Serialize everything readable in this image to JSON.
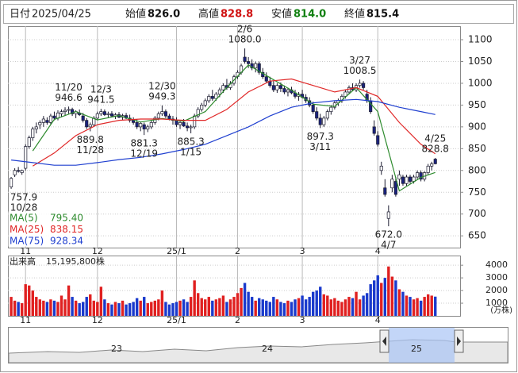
{
  "header": [
    {
      "label": "日付",
      "value": "2025/04/25",
      "color": "#222222"
    },
    {
      "label": "始値",
      "value": "826.0",
      "color": "#111111"
    },
    {
      "label": "高値",
      "value": "828.8",
      "color": "#d01010"
    },
    {
      "label": "安値",
      "value": "814.0",
      "color": "#108010"
    },
    {
      "label": "終値",
      "value": "815.4",
      "color": "#111111"
    }
  ],
  "chart_data": [
    {
      "type": "candlestick",
      "grid": true,
      "up_color": "#ffffff",
      "down_color": "#1a237e",
      "edge_color": "#1a1a2e",
      "xlim": [
        -0.9,
        124.9
      ],
      "ylim": [
        623,
        1131
      ],
      "yticks": [
        650,
        700,
        750,
        800,
        850,
        900,
        950,
        1000,
        1050,
        1100
      ],
      "xticks": [
        {
          "value": 4,
          "label": "11"
        },
        {
          "value": 24,
          "label": "12"
        },
        {
          "value": 46,
          "label": "25/1"
        },
        {
          "value": 63,
          "label": "2"
        },
        {
          "value": 81,
          "label": "3"
        },
        {
          "value": 102,
          "label": "4"
        }
      ],
      "ohlc": [
        [
          762,
          785,
          757.9,
          782
        ],
        [
          790,
          805,
          785,
          800
        ],
        [
          800,
          808,
          795,
          798
        ],
        [
          795,
          802,
          790,
          800
        ],
        [
          805,
          860,
          800,
          855
        ],
        [
          855,
          880,
          850,
          875
        ],
        [
          875,
          900,
          868,
          895
        ],
        [
          895,
          910,
          885,
          900
        ],
        [
          905,
          915,
          895,
          910
        ],
        [
          910,
          925,
          900,
          918
        ],
        [
          915,
          922,
          905,
          910
        ],
        [
          910,
          930,
          905,
          925
        ],
        [
          925,
          935,
          915,
          920
        ],
        [
          920,
          938,
          915,
          932
        ],
        [
          930,
          940,
          922,
          935
        ],
        [
          935,
          945,
          925,
          938
        ],
        [
          938,
          946.6,
          930,
          940
        ],
        [
          940,
          944,
          925,
          930
        ],
        [
          930,
          938,
          920,
          935
        ],
        [
          932,
          940,
          925,
          928
        ],
        [
          925,
          932,
          910,
          915
        ],
        [
          915,
          920,
          895,
          900
        ],
        [
          900,
          910,
          889.8,
          905
        ],
        [
          905,
          925,
          900,
          920
        ],
        [
          920,
          935,
          915,
          930
        ],
        [
          930,
          941.5,
          925,
          935
        ],
        [
          935,
          940,
          925,
          928
        ],
        [
          928,
          935,
          920,
          930
        ],
        [
          930,
          936,
          922,
          925
        ],
        [
          925,
          932,
          918,
          928
        ],
        [
          928,
          934,
          920,
          922
        ],
        [
          922,
          930,
          915,
          926
        ],
        [
          926,
          932,
          918,
          920
        ],
        [
          920,
          928,
          910,
          915
        ],
        [
          915,
          922,
          905,
          910
        ],
        [
          910,
          918,
          895,
          900
        ],
        [
          900,
          912,
          890,
          908
        ],
        [
          905,
          910,
          881.3,
          895
        ],
        [
          895,
          905,
          888,
          900
        ],
        [
          900,
          915,
          895,
          910
        ],
        [
          910,
          925,
          905,
          920
        ],
        [
          920,
          935,
          915,
          930
        ],
        [
          930,
          949.3,
          925,
          935
        ],
        [
          935,
          940,
          920,
          925
        ],
        [
          925,
          930,
          915,
          918
        ],
        [
          918,
          925,
          905,
          915
        ],
        [
          915,
          922,
          900,
          905
        ],
        [
          905,
          915,
          895,
          910
        ],
        [
          910,
          918,
          900,
          902
        ],
        [
          902,
          910,
          890,
          898
        ],
        [
          898,
          905,
          885.3,
          900
        ],
        [
          900,
          930,
          895,
          925
        ],
        [
          925,
          945,
          920,
          940
        ],
        [
          940,
          955,
          935,
          950
        ],
        [
          950,
          965,
          945,
          960
        ],
        [
          960,
          975,
          955,
          970
        ],
        [
          970,
          985,
          960,
          965
        ],
        [
          965,
          980,
          960,
          975
        ],
        [
          975,
          990,
          968,
          985
        ],
        [
          985,
          1000,
          978,
          995
        ],
        [
          995,
          1010,
          985,
          990
        ],
        [
          990,
          1005,
          985,
          1000
        ],
        [
          1000,
          1020,
          995,
          1015
        ],
        [
          1015,
          1030,
          1010,
          1025
        ],
        [
          1025,
          1045,
          1020,
          1040
        ],
        [
          1060,
          1080,
          1045,
          1050
        ],
        [
          1050,
          1060,
          1035,
          1045
        ],
        [
          1045,
          1055,
          1030,
          1035
        ],
        [
          1035,
          1050,
          1025,
          1045
        ],
        [
          1045,
          1050,
          1020,
          1025
        ],
        [
          1025,
          1035,
          1010,
          1015
        ],
        [
          1015,
          1025,
          1000,
          1005
        ],
        [
          1005,
          1015,
          990,
          995
        ],
        [
          995,
          1005,
          980,
          985
        ],
        [
          985,
          1000,
          978,
          995
        ],
        [
          995,
          1002,
          980,
          988
        ],
        [
          988,
          995,
          975,
          980
        ],
        [
          980,
          990,
          970,
          985
        ],
        [
          985,
          992,
          975,
          978
        ],
        [
          978,
          985,
          965,
          970
        ],
        [
          970,
          980,
          960,
          975
        ],
        [
          975,
          985,
          965,
          968
        ],
        [
          968,
          975,
          955,
          960
        ],
        [
          960,
          968,
          945,
          950
        ],
        [
          950,
          958,
          930,
          935
        ],
        [
          935,
          945,
          915,
          920
        ],
        [
          920,
          930,
          897.3,
          905
        ],
        [
          905,
          925,
          900,
          920
        ],
        [
          920,
          940,
          915,
          935
        ],
        [
          935,
          950,
          928,
          945
        ],
        [
          945,
          960,
          940,
          955
        ],
        [
          955,
          965,
          948,
          960
        ],
        [
          960,
          975,
          955,
          970
        ],
        [
          970,
          985,
          965,
          980
        ],
        [
          980,
          995,
          975,
          990
        ],
        [
          990,
          1000,
          982,
          985
        ],
        [
          985,
          1000,
          980,
          995
        ],
        [
          995,
          1008.5,
          990,
          1000
        ],
        [
          1000,
          1005,
          985,
          990
        ],
        [
          975,
          985,
          955,
          960
        ],
        [
          960,
          968,
          930,
          935
        ],
        [
          900,
          915,
          880,
          885
        ],
        [
          880,
          890,
          855,
          860
        ],
        [
          800,
          820,
          790,
          810
        ],
        [
          760,
          780,
          740,
          745
        ],
        [
          690,
          720,
          672,
          705
        ],
        [
          760,
          790,
          750,
          780
        ],
        [
          775,
          785,
          740,
          745
        ],
        [
          780,
          800,
          765,
          790
        ],
        [
          785,
          790,
          765,
          770
        ],
        [
          770,
          790,
          765,
          785
        ],
        [
          785,
          790,
          770,
          775
        ],
        [
          775,
          790,
          770,
          785
        ],
        [
          785,
          800,
          780,
          795
        ],
        [
          795,
          800,
          775,
          780
        ],
        [
          780,
          798,
          775,
          795
        ],
        [
          795,
          815,
          790,
          810
        ],
        [
          810,
          820,
          800,
          815
        ],
        [
          826,
          828.8,
          814,
          815.4
        ]
      ],
      "series": [
        {
          "name": "MA(5)",
          "color": "#2e8b2e",
          "last": {
            "value": 795.4,
            "label": "795.40"
          },
          "x": [
            6,
            12,
            18,
            24,
            30,
            36,
            42,
            48,
            54,
            60,
            66,
            72,
            78,
            84,
            90,
            96,
            102,
            108,
            114,
            118
          ],
          "values": [
            845,
            917,
            935,
            916,
            926,
            911,
            919,
            913,
            935,
            990,
            1042,
            1013,
            984,
            952,
            947,
            990,
            935,
            753,
            784,
            795.4
          ]
        },
        {
          "name": "MA(25)",
          "color": "#e02828",
          "last": {
            "value": 838.15,
            "label": "838.15"
          },
          "x": [
            6,
            12,
            18,
            24,
            30,
            36,
            42,
            48,
            54,
            60,
            66,
            72,
            78,
            84,
            90,
            96,
            102,
            108,
            114,
            118
          ],
          "values": [
            810,
            840,
            880,
            905,
            915,
            918,
            918,
            915,
            915,
            940,
            980,
            1005,
            1010,
            995,
            980,
            990,
            970,
            910,
            860,
            838.15
          ]
        },
        {
          "name": "MA(75)",
          "color": "#2040d0",
          "last": {
            "value": 928.34,
            "label": "928.34"
          },
          "x": [
            0,
            6,
            12,
            18,
            24,
            30,
            36,
            42,
            48,
            54,
            60,
            66,
            72,
            78,
            84,
            90,
            96,
            102,
            108,
            114,
            118
          ],
          "values": [
            824,
            818,
            812,
            812,
            818,
            825,
            830,
            838,
            848,
            860,
            880,
            900,
            925,
            945,
            955,
            960,
            963,
            958,
            945,
            935,
            928.34
          ]
        }
      ],
      "annotations": [
        {
          "index": 0,
          "position": "below",
          "date": "10/28",
          "price": 757.9
        },
        {
          "index": 16,
          "position": "above",
          "date": "11/20",
          "price": 946.6
        },
        {
          "index": 22,
          "position": "below",
          "date": "11/28",
          "price": 889.8
        },
        {
          "index": 25,
          "position": "above",
          "date": "12/3",
          "price": 941.5
        },
        {
          "index": 37,
          "position": "below",
          "date": "12/19",
          "price": 881.3
        },
        {
          "index": 42,
          "position": "above",
          "date": "12/30",
          "price": 949.3
        },
        {
          "index": 50,
          "position": "below",
          "date": "1/15",
          "price": 885.3
        },
        {
          "index": 65,
          "position": "above",
          "date": "2/6",
          "price": {
            "value": 1080,
            "label": "1080.0"
          }
        },
        {
          "index": 86,
          "position": "below",
          "date": "3/11",
          "price": 897.3
        },
        {
          "index": 97,
          "position": "above",
          "date": "3/27",
          "price": 1008.5
        },
        {
          "index": 105,
          "position": "below",
          "date": "4/7",
          "price": {
            "value": 672,
            "label": "672.0"
          }
        },
        {
          "index": 118,
          "position": "above",
          "date": "4/25",
          "price": 828.8
        }
      ]
    },
    {
      "type": "bar",
      "title": "出来高",
      "total": {
        "value": 15195800,
        "label": "15,195,800株"
      },
      "unit": "(万株)",
      "up_color": "#e02020",
      "down_color": "#1a3acc",
      "grid": true,
      "xlim": [
        -0.9,
        124.9
      ],
      "ylim": [
        0,
        4700
      ],
      "yticks": [
        1000,
        2000,
        3000,
        4000
      ],
      "xticks": [
        {
          "value": 4,
          "label": "11"
        },
        {
          "value": 24,
          "label": "12"
        },
        {
          "value": 46,
          "label": "25/1"
        },
        {
          "value": 63,
          "label": "2"
        },
        {
          "value": 81,
          "label": "3"
        },
        {
          "value": 102,
          "label": "4"
        }
      ],
      "values": [
        1500,
        1200,
        1100,
        1000,
        2500,
        2400,
        2000,
        1500,
        1300,
        1200,
        1100,
        1300,
        1200,
        1100,
        1600,
        1300,
        2400,
        1500,
        1200,
        1000,
        1100,
        1500,
        1700,
        1200,
        1100,
        2300,
        1300,
        1000,
        900,
        1100,
        1000,
        1200,
        900,
        1000,
        1100,
        1400,
        1200,
        1500,
        1000,
        1100,
        1200,
        1300,
        2000,
        1100,
        900,
        1000,
        1100,
        1200,
        1300,
        1100,
        1500,
        2800,
        1800,
        1400,
        1300,
        1500,
        1200,
        1300,
        1400,
        1600,
        1100,
        1300,
        1500,
        1800,
        2200,
        2600,
        1900,
        1500,
        1200,
        1400,
        1300,
        1200,
        1100,
        1500,
        1300,
        1100,
        1000,
        1200,
        1100,
        1300,
        1400,
        1600,
        1300,
        1500,
        1900,
        2000,
        2300,
        1700,
        1600,
        1300,
        1400,
        1200,
        1100,
        1300,
        1500,
        1400,
        1900,
        1300,
        1600,
        1800,
        2500,
        2800,
        3200,
        2600,
        3000,
        3900,
        3100,
        2800,
        2100,
        1900,
        1600,
        1500,
        1300,
        1400,
        1200,
        1500,
        1700,
        1600,
        1519.58
      ]
    }
  ],
  "navigator": {
    "labels": [
      "23",
      "24",
      "25"
    ]
  }
}
